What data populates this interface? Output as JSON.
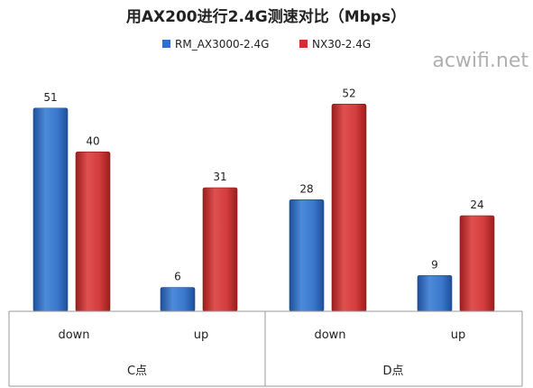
{
  "chart_data": {
    "type": "bar",
    "title": "用AX200进行2.4G测速对比（Mbps）",
    "groups": [
      "C点",
      "D点"
    ],
    "categories": [
      "down",
      "up",
      "down",
      "up"
    ],
    "series": [
      {
        "name": "RM_AX3000-2.4G",
        "values": [
          51,
          6,
          28,
          9
        ],
        "color": "#2f6fc4"
      },
      {
        "name": "NX30-2.4G",
        "values": [
          40,
          31,
          52,
          24
        ],
        "color": "#cc3232"
      }
    ],
    "ylim": [
      0,
      60
    ],
    "legend_position": "top",
    "grid": false
  },
  "watermark": "acwifi.net"
}
